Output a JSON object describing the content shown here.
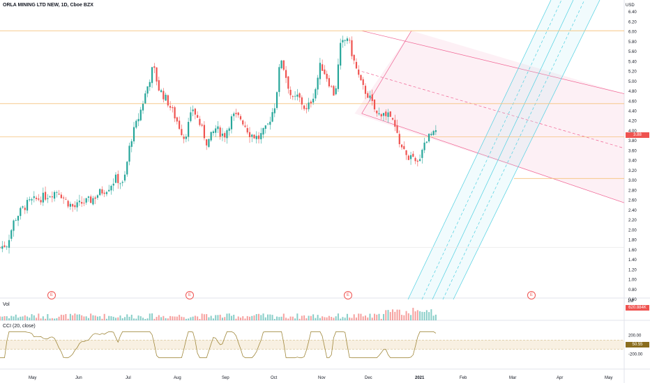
{
  "title": "ORLA MINING LTD NEW, 1D, Cboe BZX",
  "currency": "USD",
  "price_last": "3.88",
  "volume_label": "Vol",
  "volume_scale": "1M",
  "volume_last": "620.884K",
  "cci_label": "CCI (20, close)",
  "cci_last": "50.55",
  "earnings_marker": "E",
  "colors": {
    "up": "#26a69a",
    "down": "#ef5350",
    "cci": "#a0883c",
    "pitchfork_red": "#f06292",
    "pitchfork_teal": "#4dd0e1",
    "hline": "#f5c17a"
  },
  "chart_data": [
    {
      "type": "candlestick",
      "title": "ORLA MINING LTD NEW, 1D, Cboe BZX",
      "y_ticks": [
        "6.40",
        "6.20",
        "6.00",
        "5.80",
        "5.60",
        "5.40",
        "5.20",
        "5.00",
        "4.80",
        "4.60",
        "4.40",
        "4.20",
        "4.00",
        "3.80",
        "3.60",
        "3.40",
        "3.20",
        "3.00",
        "2.80",
        "2.60",
        "2.40",
        "2.20",
        "2.00",
        "1.80",
        "1.60",
        "1.40",
        "1.20",
        "1.00",
        "0.80",
        "0.60"
      ],
      "x_ticks": [
        "May",
        "Jun",
        "Jul",
        "Aug",
        "Sep",
        "Oct",
        "Nov",
        "Dec",
        "2021",
        "Feb",
        "Mar",
        "Apr",
        "May"
      ],
      "ylim": [
        0.6,
        6.5
      ],
      "last_price": 3.88,
      "horizontal_levels": [
        6.02,
        4.55,
        3.88,
        3.04,
        1.65
      ],
      "close_path": [
        [
          0,
          1.65
        ],
        [
          5,
          1.72
        ],
        [
          10,
          2.2
        ],
        [
          15,
          2.4
        ],
        [
          20,
          2.55
        ],
        [
          26,
          2.62
        ],
        [
          32,
          2.68
        ],
        [
          37,
          2.75
        ],
        [
          41,
          2.8
        ],
        [
          46,
          2.6
        ],
        [
          52,
          2.45
        ],
        [
          58,
          2.55
        ],
        [
          64,
          2.6
        ],
        [
          70,
          2.75
        ],
        [
          76,
          2.85
        ],
        [
          82,
          3.05
        ],
        [
          87,
          2.9
        ],
        [
          92,
          3.8
        ],
        [
          98,
          4.3
        ],
        [
          104,
          4.9
        ],
        [
          108,
          5.3
        ],
        [
          112,
          4.85
        ],
        [
          118,
          4.6
        ],
        [
          124,
          4.25
        ],
        [
          130,
          3.85
        ],
        [
          136,
          4.45
        ],
        [
          140,
          4.2
        ],
        [
          146,
          3.75
        ],
        [
          152,
          4.05
        ],
        [
          158,
          3.9
        ],
        [
          164,
          4.3
        ],
        [
          170,
          4.25
        ],
        [
          176,
          3.95
        ],
        [
          182,
          3.85
        ],
        [
          188,
          4.05
        ],
        [
          194,
          4.55
        ],
        [
          198,
          5.5
        ],
        [
          202,
          5.05
        ],
        [
          206,
          4.6
        ],
        [
          210,
          4.7
        ],
        [
          216,
          4.4
        ],
        [
          222,
          4.8
        ],
        [
          226,
          5.35
        ],
        [
          231,
          5.05
        ],
        [
          236,
          4.7
        ],
        [
          240,
          5.7
        ],
        [
          245,
          5.9
        ],
        [
          250,
          5.35
        ],
        [
          255,
          4.9
        ],
        [
          260,
          4.7
        ],
        [
          266,
          4.3
        ],
        [
          270,
          4.4
        ],
        [
          276,
          4.25
        ],
        [
          282,
          3.75
        ],
        [
          286,
          3.5
        ],
        [
          290,
          3.45
        ],
        [
          294,
          3.3
        ],
        [
          298,
          3.7
        ],
        [
          304,
          3.98
        ],
        [
          308,
          4.12
        ]
      ]
    },
    {
      "type": "bar",
      "title": "Vol",
      "note": "daily volume bars, colored by candle direction"
    },
    {
      "type": "line",
      "title": "CCI (20, close)",
      "y_ticks": [
        "200.00",
        "0.00",
        "-200.00"
      ],
      "ylim": [
        -300,
        300
      ],
      "last_value": 50.55
    }
  ]
}
